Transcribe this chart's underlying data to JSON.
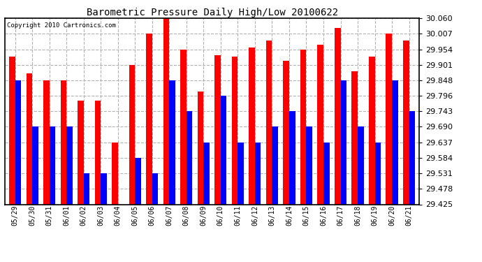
{
  "title": "Barometric Pressure Daily High/Low 20100622",
  "copyright": "Copyright 2010 Cartronics.com",
  "categories": [
    "05/29",
    "05/30",
    "05/31",
    "06/01",
    "06/02",
    "06/03",
    "06/04",
    "06/05",
    "06/06",
    "06/07",
    "06/08",
    "06/09",
    "06/10",
    "06/11",
    "06/12",
    "06/13",
    "06/14",
    "06/15",
    "06/16",
    "06/17",
    "06/18",
    "06/19",
    "06/20",
    "06/21"
  ],
  "highs": [
    29.93,
    29.872,
    29.848,
    29.848,
    29.779,
    29.779,
    29.636,
    29.901,
    30.007,
    30.06,
    29.954,
    29.81,
    29.934,
    29.93,
    29.96,
    29.984,
    29.916,
    29.954,
    29.97,
    30.028,
    29.879,
    29.93,
    30.007,
    29.984
  ],
  "lows": [
    29.848,
    29.69,
    29.69,
    29.69,
    29.531,
    29.531,
    29.425,
    29.584,
    29.531,
    29.848,
    29.743,
    29.637,
    29.796,
    29.637,
    29.637,
    29.69,
    29.743,
    29.69,
    29.637,
    29.848,
    29.69,
    29.637,
    29.848,
    29.743
  ],
  "high_color": "#ff0000",
  "low_color": "#0000ff",
  "background_color": "#ffffff",
  "grid_color": "#aaaaaa",
  "ylim_min": 29.425,
  "ylim_max": 30.06,
  "yticks": [
    29.425,
    29.478,
    29.531,
    29.584,
    29.637,
    29.69,
    29.743,
    29.796,
    29.848,
    29.901,
    29.954,
    30.007,
    30.06
  ],
  "bar_width": 0.35,
  "figsize": [
    6.9,
    3.75
  ],
  "dpi": 100
}
